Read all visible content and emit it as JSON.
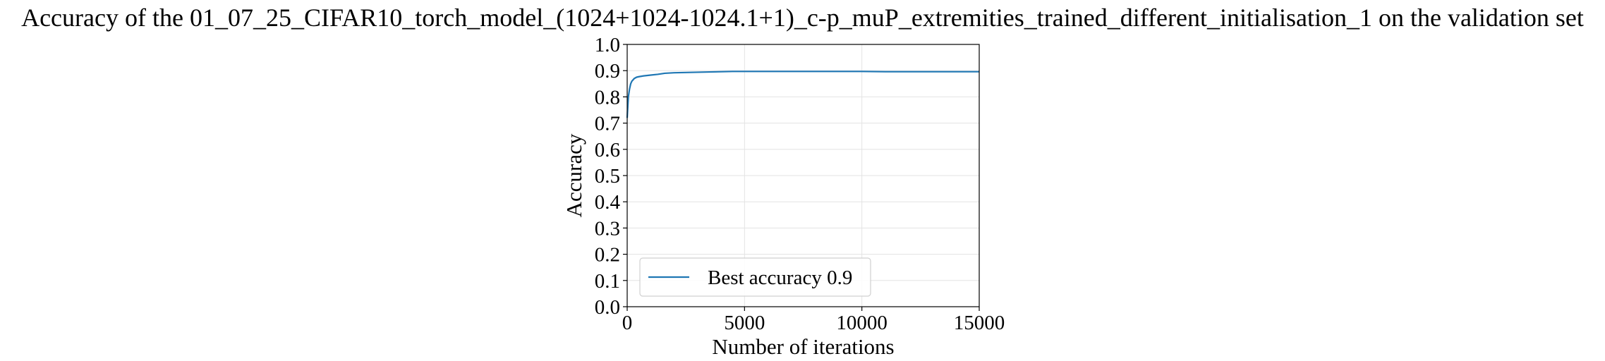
{
  "chart_data": {
    "type": "line",
    "title": "Accuracy of the 01_07_25_CIFAR10_torch_model_(1024+1024-1024.1+1)_c-p_muP_extremities_trained_different_initialisation_1 on the validation set",
    "xlabel": "Number of iterations",
    "ylabel": "Accuracy",
    "xlim": [
      0,
      15000
    ],
    "ylim": [
      0.0,
      1.0
    ],
    "xticks": [
      0,
      5000,
      10000,
      15000
    ],
    "xtick_labels": [
      "0",
      "5000",
      "10000",
      "15000"
    ],
    "yticks": [
      0.0,
      0.1,
      0.2,
      0.3,
      0.4,
      0.5,
      0.6,
      0.7,
      0.8,
      0.9,
      1.0
    ],
    "ytick_labels": [
      "0.0",
      "0.1",
      "0.2",
      "0.3",
      "0.4",
      "0.5",
      "0.6",
      "0.7",
      "0.8",
      "0.9",
      "1.0"
    ],
    "grid": true,
    "legend_position": "bottom-left",
    "color": "#1f77b4",
    "series": [
      {
        "name": "Best accuracy 0.9",
        "x": [
          0,
          25,
          50,
          100,
          150,
          200,
          300,
          400,
          500,
          700,
          1000,
          1300,
          1600,
          2000,
          2500,
          3000,
          3500,
          4000,
          4500,
          5000,
          6000,
          7000,
          8000,
          9000,
          10000,
          11000,
          12000,
          13000,
          14000,
          15000
        ],
        "y": [
          0.72,
          0.76,
          0.8,
          0.83,
          0.85,
          0.86,
          0.87,
          0.875,
          0.877,
          0.88,
          0.883,
          0.886,
          0.89,
          0.892,
          0.893,
          0.894,
          0.895,
          0.896,
          0.897,
          0.897,
          0.897,
          0.897,
          0.897,
          0.897,
          0.897,
          0.896,
          0.896,
          0.896,
          0.896,
          0.896
        ]
      }
    ]
  }
}
